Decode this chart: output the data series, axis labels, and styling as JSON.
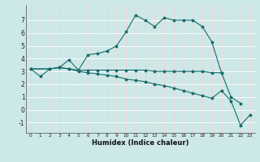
{
  "xlabel": "Humidex (Indice chaleur)",
  "xlim": [
    -0.5,
    23.5
  ],
  "ylim": [
    -1.8,
    8.2
  ],
  "xticks": [
    0,
    1,
    2,
    3,
    4,
    5,
    6,
    7,
    8,
    9,
    10,
    11,
    12,
    13,
    14,
    15,
    16,
    17,
    18,
    19,
    20,
    21,
    22,
    23
  ],
  "yticks": [
    -1,
    0,
    1,
    2,
    3,
    4,
    5,
    6,
    7
  ],
  "bg_color": "#cce8e8",
  "line_color": "#1a6b6b",
  "grid_color": "#ffffff",
  "line1_x": [
    0,
    1,
    2,
    3,
    4,
    5,
    6,
    7,
    8,
    9,
    10,
    11,
    12,
    13,
    14,
    15,
    16,
    17,
    18,
    19,
    20,
    21,
    22
  ],
  "line1_y": [
    3.2,
    2.6,
    3.2,
    3.3,
    3.9,
    3.1,
    4.3,
    4.4,
    4.6,
    5.0,
    6.1,
    7.4,
    7.0,
    6.5,
    7.2,
    7.0,
    7.0,
    7.0,
    6.5,
    5.3,
    2.9,
    1.0,
    0.5
  ],
  "line2_x": [
    0,
    2,
    3,
    4,
    5,
    6,
    7,
    8,
    9,
    10,
    11,
    12,
    13,
    14,
    15,
    16,
    17,
    18,
    19,
    20
  ],
  "line2_y": [
    3.2,
    3.2,
    3.3,
    3.2,
    3.1,
    3.1,
    3.1,
    3.1,
    3.1,
    3.1,
    3.1,
    3.1,
    3.0,
    3.0,
    3.0,
    3.0,
    3.0,
    3.0,
    2.9,
    2.9
  ],
  "line3_x": [
    0,
    2,
    3,
    4,
    5,
    6,
    7,
    8,
    9,
    10,
    11,
    12,
    13,
    14,
    15,
    16,
    17,
    18,
    19,
    20,
    21,
    22,
    23
  ],
  "line3_y": [
    3.2,
    3.2,
    3.3,
    3.2,
    3.0,
    2.9,
    2.8,
    2.7,
    2.6,
    2.4,
    2.3,
    2.2,
    2.0,
    1.9,
    1.7,
    1.5,
    1.3,
    1.1,
    0.9,
    1.5,
    0.7,
    -1.2,
    -0.4
  ]
}
